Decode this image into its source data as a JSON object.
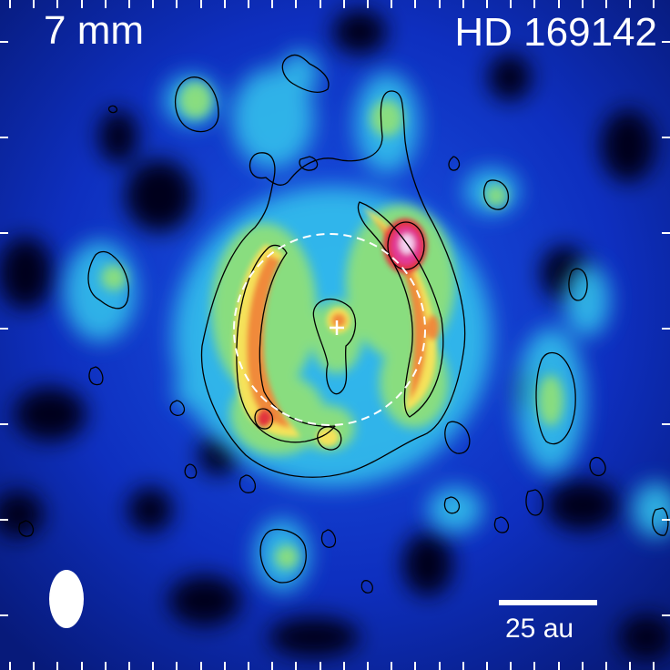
{
  "figure": {
    "wavelength": "7 mm",
    "target": "HD 169142",
    "scale_bar": "25 au"
  },
  "markers": {
    "star_position": "+",
    "beam": "ellipse",
    "reference_ring": "dashed circle"
  },
  "colors": {
    "background_low": "#0a0a2a",
    "blue": "#1438d6",
    "cyan": "#35c8ee",
    "green": "#8ee07a",
    "yellow": "#f5e25a",
    "orange": "#f08a3a",
    "red": "#e2353c",
    "magenta": "#e23a9a",
    "peak": "#f4d0f0",
    "contour": "#000000",
    "annotation": "#ffffff"
  }
}
